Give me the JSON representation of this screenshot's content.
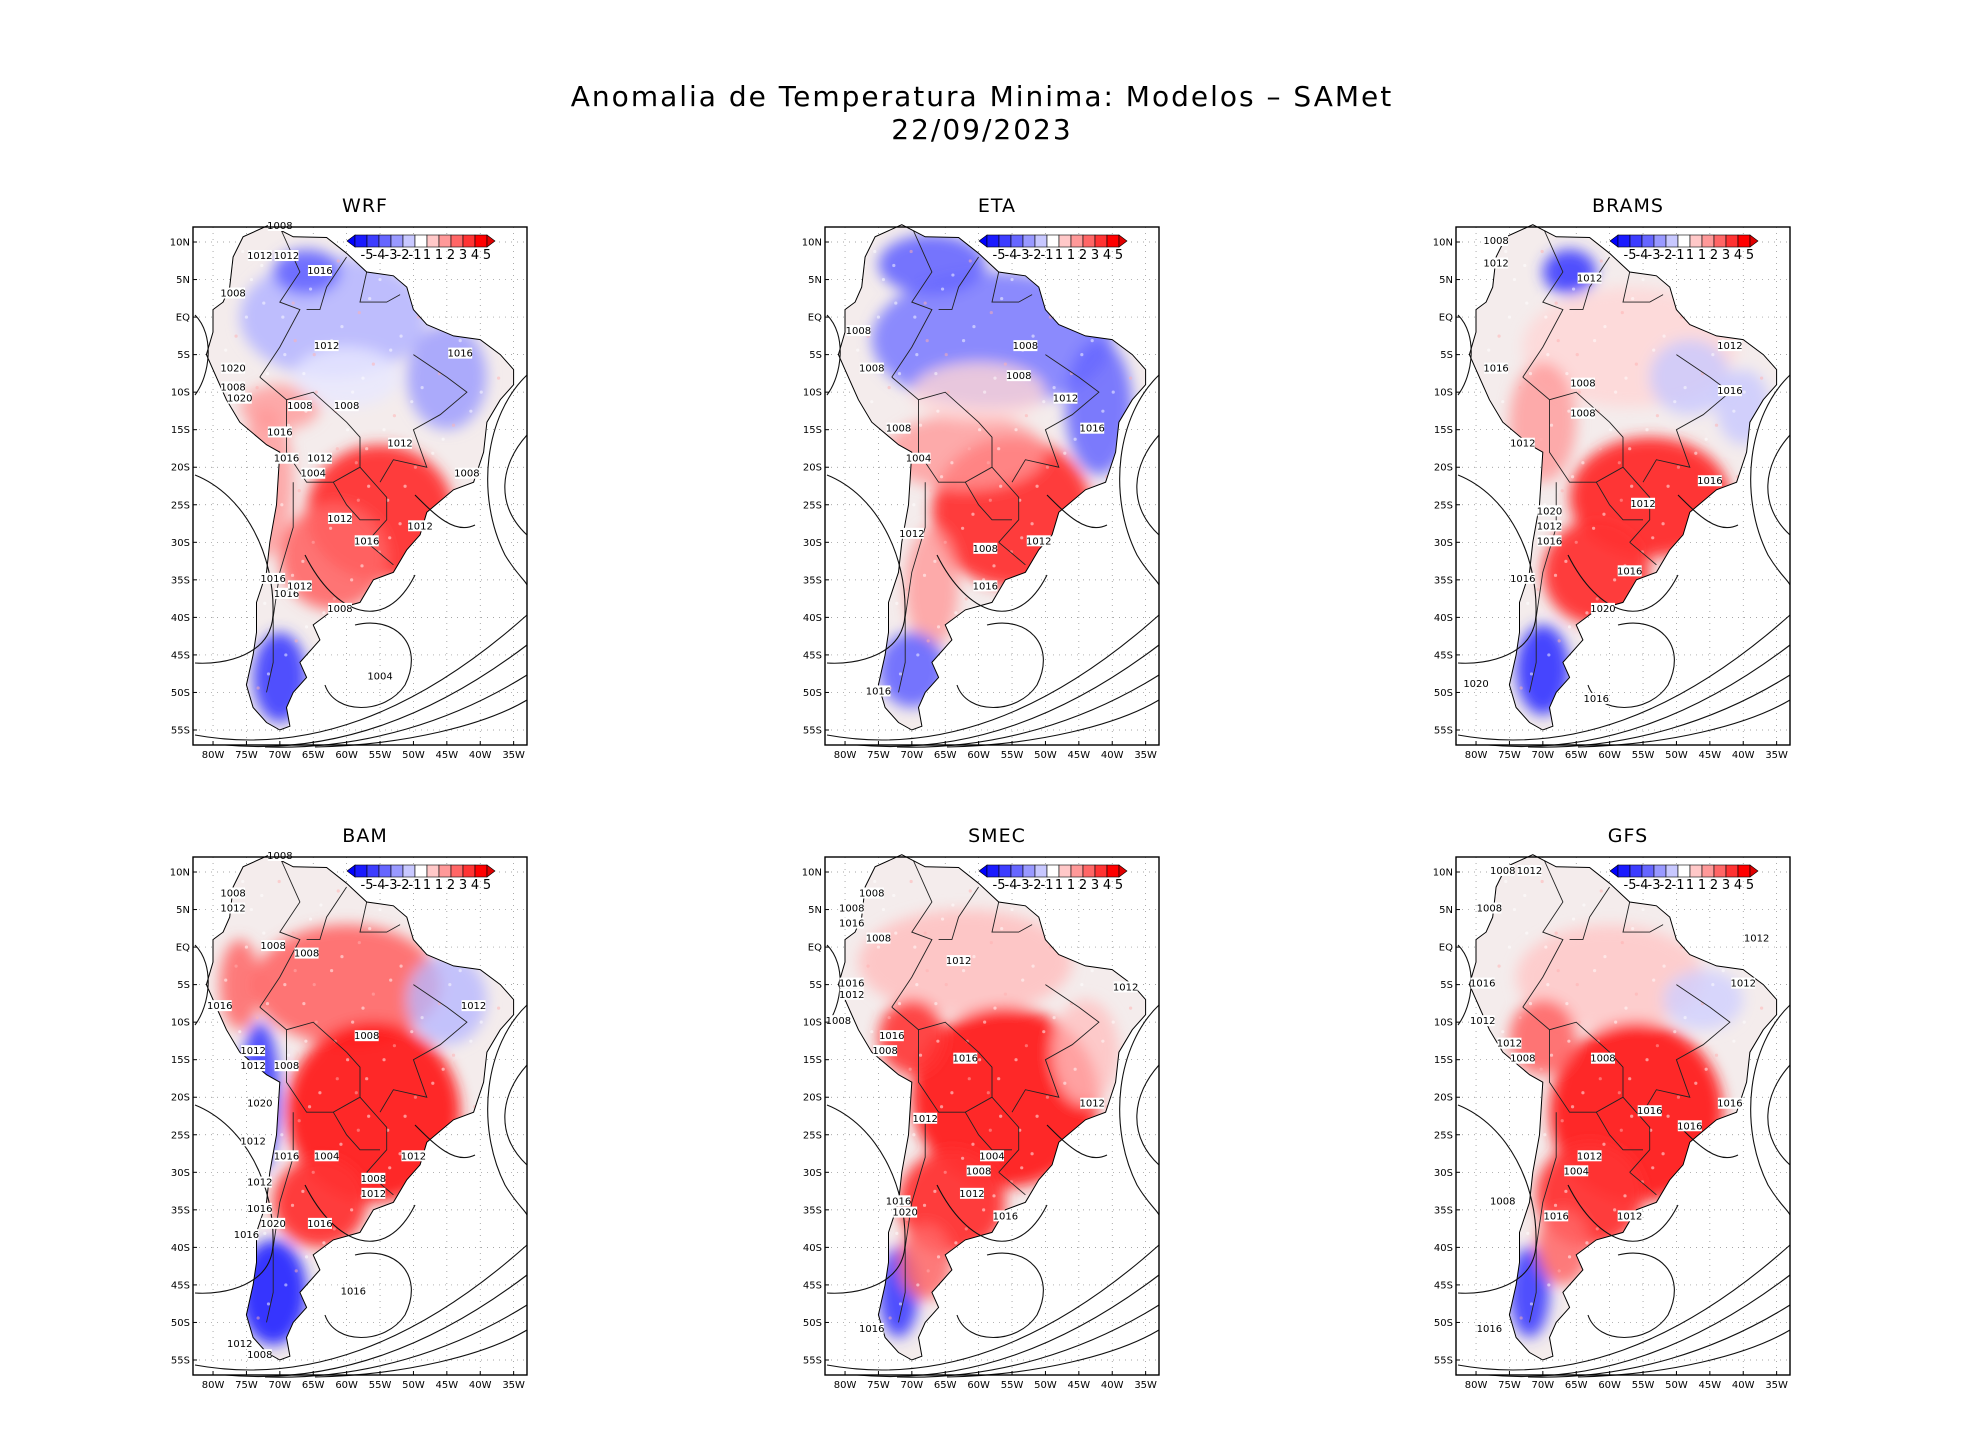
{
  "figure": {
    "title_line1": "Anomalia de Temperatura Minima: Modelos – SAMet",
    "title_line2": "22/09/2023"
  },
  "axes": {
    "lat_labels": [
      "10N",
      "5N",
      "EQ",
      "5S",
      "10S",
      "15S",
      "20S",
      "25S",
      "30S",
      "35S",
      "40S",
      "45S",
      "50S",
      "55S"
    ],
    "lon_labels": [
      "80W",
      "75W",
      "70W",
      "65W",
      "60W",
      "55W",
      "50W",
      "45W",
      "40W",
      "35W"
    ]
  },
  "colorbar": {
    "labels": [
      "-5",
      "-4",
      "-3",
      "-2",
      "-1",
      "1",
      "1",
      "2",
      "3",
      "4",
      "5"
    ],
    "colors": [
      "#1a1aff",
      "#3d3dff",
      "#6666ff",
      "#9999ff",
      "#c8c8ff",
      "#ffffff",
      "#ffc8c8",
      "#ff9999",
      "#ff6666",
      "#ff3333",
      "#ff0000"
    ]
  },
  "panels": [
    {
      "name": "WRF",
      "isobar_labels": [
        "1008",
        "1012",
        "1012",
        "1016",
        "1008",
        "1012",
        "1016",
        "1020",
        "1008",
        "1008",
        "1008",
        "1020",
        "1016",
        "1012",
        "1012",
        "1016",
        "1004",
        "1008",
        "1012",
        "1016",
        "1012",
        "1016",
        "1016",
        "1012",
        "1008",
        "1004"
      ]
    },
    {
      "name": "ETA",
      "isobar_labels": [
        "1008",
        "1008",
        "1008",
        "1008",
        "1012",
        "1016",
        "1008",
        "1004",
        "1012",
        "1008",
        "1012",
        "1016",
        "1016"
      ]
    },
    {
      "name": "BRAMS",
      "isobar_labels": [
        "1008",
        "1012",
        "1012",
        "1012",
        "1016",
        "1016",
        "1008",
        "1008",
        "1012",
        "1016",
        "1012",
        "1020",
        "1012",
        "1016",
        "1016",
        "1016",
        "1020",
        "1020",
        "1016"
      ]
    },
    {
      "name": "BAM",
      "isobar_labels": [
        "1008",
        "1008",
        "1012",
        "1008",
        "1008",
        "1016",
        "1012",
        "1012",
        "1008",
        "1008",
        "1012",
        "1020",
        "1012",
        "1016",
        "1004",
        "1012",
        "1012",
        "1008",
        "1012",
        "1016",
        "1020",
        "1016",
        "1016",
        "1016",
        "1012",
        "1008"
      ]
    },
    {
      "name": "SMEC",
      "isobar_labels": [
        "1008",
        "1008",
        "1016",
        "1008",
        "1012",
        "1016",
        "1012",
        "1012",
        "1008",
        "1016",
        "1008",
        "1016",
        "1012",
        "1012",
        "1004",
        "1008",
        "1012",
        "1016",
        "1020",
        "1016",
        "1016"
      ]
    },
    {
      "name": "GFS",
      "isobar_labels": [
        "1008",
        "1012",
        "1008",
        "1012",
        "1016",
        "1012",
        "1008",
        "1012",
        "1012",
        "1016",
        "1008",
        "1016",
        "1012",
        "1004",
        "1008",
        "1016",
        "1012",
        "1016",
        "1016"
      ]
    }
  ]
}
